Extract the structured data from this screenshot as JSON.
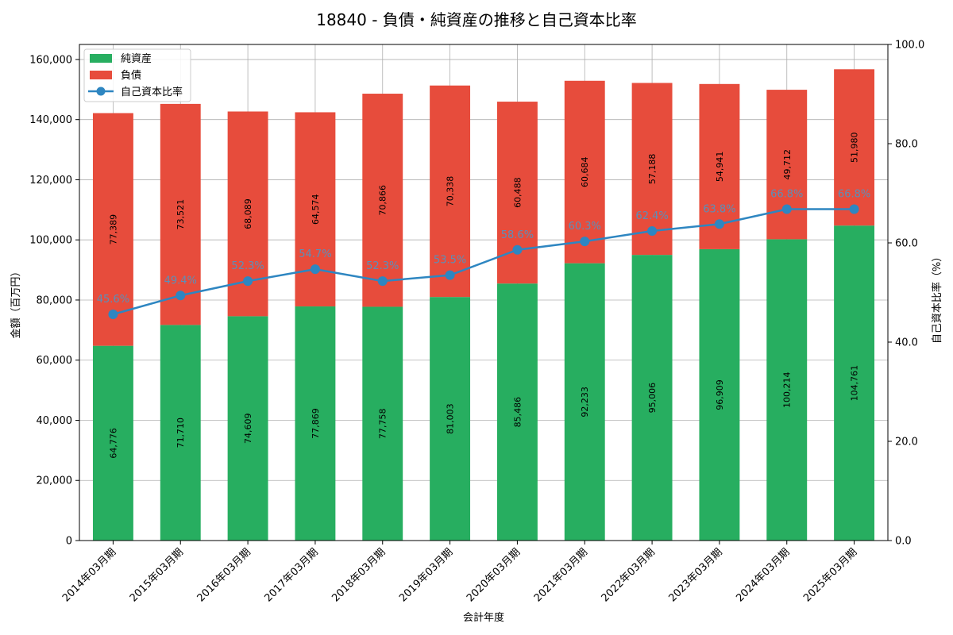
{
  "chart_data": {
    "type": "bar",
    "title": "18840 - 負債・純資産の推移と自己資本比率",
    "xlabel": "会計年度",
    "ylabel": "金額（百万円）",
    "y2label": "自己資本比率（%）",
    "ylim": [
      0,
      165000
    ],
    "y2lim": [
      0,
      100
    ],
    "yticks": [
      "0",
      "20,000",
      "40,000",
      "60,000",
      "80,000",
      "100,000",
      "120,000",
      "140,000",
      "160,000"
    ],
    "y2ticks": [
      "0.0",
      "20.0",
      "40.0",
      "60.0",
      "80.0",
      "100.0"
    ],
    "grid": true,
    "legend_position": "top-left",
    "categories": [
      "2014年03月期",
      "2015年03月期",
      "2016年03月期",
      "2017年03月期",
      "2018年03月期",
      "2019年03月期",
      "2020年03月期",
      "2021年03月期",
      "2022年03月期",
      "2023年03月期",
      "2024年03月期",
      "2025年03月期"
    ],
    "series": [
      {
        "name": "純資産",
        "kind": "stacked-bar",
        "color": "#27ae60",
        "values": [
          64776,
          71710,
          74609,
          77869,
          77758,
          81003,
          85486,
          92233,
          95006,
          96909,
          100214,
          104761
        ],
        "labels": [
          "64,776",
          "71,710",
          "74,609",
          "77,869",
          "77,758",
          "81,003",
          "85,486",
          "92,233",
          "95,006",
          "96,909",
          "100,214",
          "104,761"
        ]
      },
      {
        "name": "負債",
        "kind": "stacked-bar",
        "color": "#e74c3c",
        "values": [
          77389,
          73521,
          68089,
          64574,
          70866,
          70338,
          60488,
          60684,
          57188,
          54941,
          49712,
          51980
        ],
        "labels": [
          "77,389",
          "73,521",
          "68,089",
          "64,574",
          "70,866",
          "70,338",
          "60,488",
          "60,684",
          "57,188",
          "54,941",
          "49,712",
          "51,980"
        ]
      },
      {
        "name": "自己資本比率",
        "kind": "line",
        "axis": "right",
        "color": "#2e86c1",
        "values": [
          45.6,
          49.4,
          52.3,
          54.7,
          52.3,
          53.5,
          58.6,
          60.3,
          62.4,
          63.8,
          66.8,
          66.8
        ],
        "labels": [
          "45.6%",
          "49.4%",
          "52.3%",
          "54.7%",
          "52.3%",
          "53.5%",
          "58.6%",
          "60.3%",
          "62.4%",
          "63.8%",
          "66.8%",
          "66.8%"
        ]
      }
    ]
  }
}
